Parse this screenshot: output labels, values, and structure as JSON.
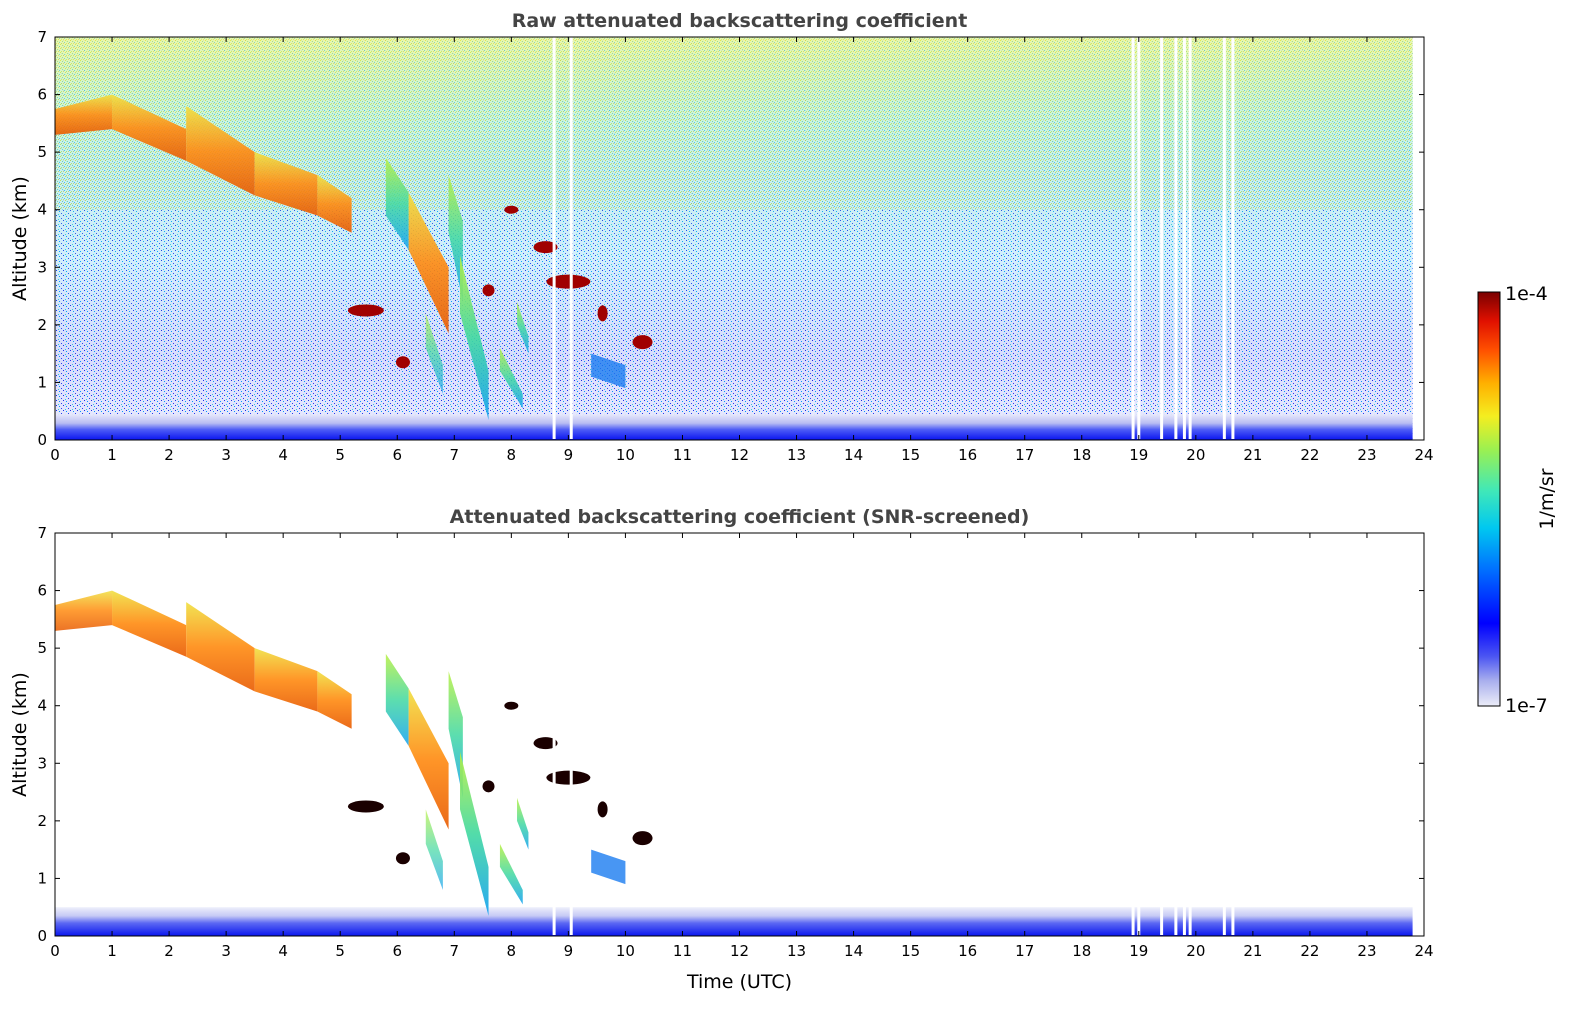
{
  "chart_data": [
    {
      "type": "heatmap",
      "title": "Raw attenuated backscattering coefficient",
      "xlabel": "",
      "ylabel": "Altitude (km)",
      "xlim": [
        0,
        24
      ],
      "ylim": [
        0,
        7
      ],
      "xticks": [
        "0",
        "1",
        "2",
        "3",
        "4",
        "5",
        "6",
        "7",
        "8",
        "9",
        "10",
        "11",
        "12",
        "13",
        "14",
        "15",
        "16",
        "17",
        "18",
        "19",
        "20",
        "21",
        "22",
        "23",
        "24"
      ],
      "yticks": [
        "0",
        "1",
        "2",
        "3",
        "4",
        "5",
        "6",
        "7"
      ],
      "data_end_time": 23.8,
      "missing_time_gaps": [
        8.75,
        9.05,
        18.9,
        19.0,
        19.4,
        19.65,
        19.8,
        19.9,
        20.5,
        20.65
      ],
      "surface_layer_top_km": 0.45,
      "cloud_features": [
        {
          "description": "descending cloud band",
          "time_start": 0,
          "time_end": 5.2,
          "alt_start_km": 5.6,
          "alt_end_km": 3.8
        },
        {
          "description": "cloud",
          "time_start": 5.9,
          "time_end": 6.3,
          "alt_start_km": 4.6,
          "alt_end_km": 3.3
        },
        {
          "description": "cloud",
          "time_start": 6.3,
          "time_end": 6.9,
          "alt_start_km": 3.5,
          "alt_end_km": 2.0
        },
        {
          "description": "fall streak",
          "time_start": 7.0,
          "time_end": 7.7,
          "alt_start_km": 4.4,
          "alt_end_km": 0.3
        },
        {
          "description": "strong layer",
          "time_start": 5.1,
          "time_end": 5.7,
          "alt_start_km": 2.25,
          "alt_end_km": 2.25
        },
        {
          "description": "strong layer",
          "time_start": 8.4,
          "time_end": 8.8,
          "alt_start_km": 3.35,
          "alt_end_km": 3.35
        },
        {
          "description": "strong layer",
          "time_start": 8.5,
          "time_end": 9.3,
          "alt_start_km": 2.75,
          "alt_end_km": 2.75
        },
        {
          "description": "strong layer",
          "time_start": 10.1,
          "time_end": 10.5,
          "alt_start_km": 1.65,
          "alt_end_km": 1.65
        }
      ]
    },
    {
      "type": "heatmap",
      "title": "Attenuated backscattering coefficient (SNR-screened)",
      "xlabel": "Time (UTC)",
      "ylabel": "Altitude (km)",
      "xlim": [
        0,
        24
      ],
      "ylim": [
        0,
        7
      ],
      "xticks": [
        "0",
        "1",
        "2",
        "3",
        "4",
        "5",
        "6",
        "7",
        "8",
        "9",
        "10",
        "11",
        "12",
        "13",
        "14",
        "15",
        "16",
        "17",
        "18",
        "19",
        "20",
        "21",
        "22",
        "23",
        "24"
      ],
      "yticks": [
        "0",
        "1",
        "2",
        "3",
        "4",
        "5",
        "6",
        "7"
      ],
      "data_end_time": 23.8,
      "surface_layer_top_km": 0.5,
      "noise_removed": true
    }
  ],
  "colorbar": {
    "label": "1/m/sr",
    "min_label": "1e-7",
    "max_label": "1e-4",
    "scale": "log",
    "colormap": "jet (white at low end)",
    "colors": [
      "#ecedf8",
      "#aab0ee",
      "#6b74f0",
      "#0000ff",
      "#0060ff",
      "#00b8ff",
      "#2ee8c8",
      "#8af060",
      "#f2f020",
      "#ffb000",
      "#ff5a00",
      "#e01000",
      "#7f0000"
    ]
  }
}
